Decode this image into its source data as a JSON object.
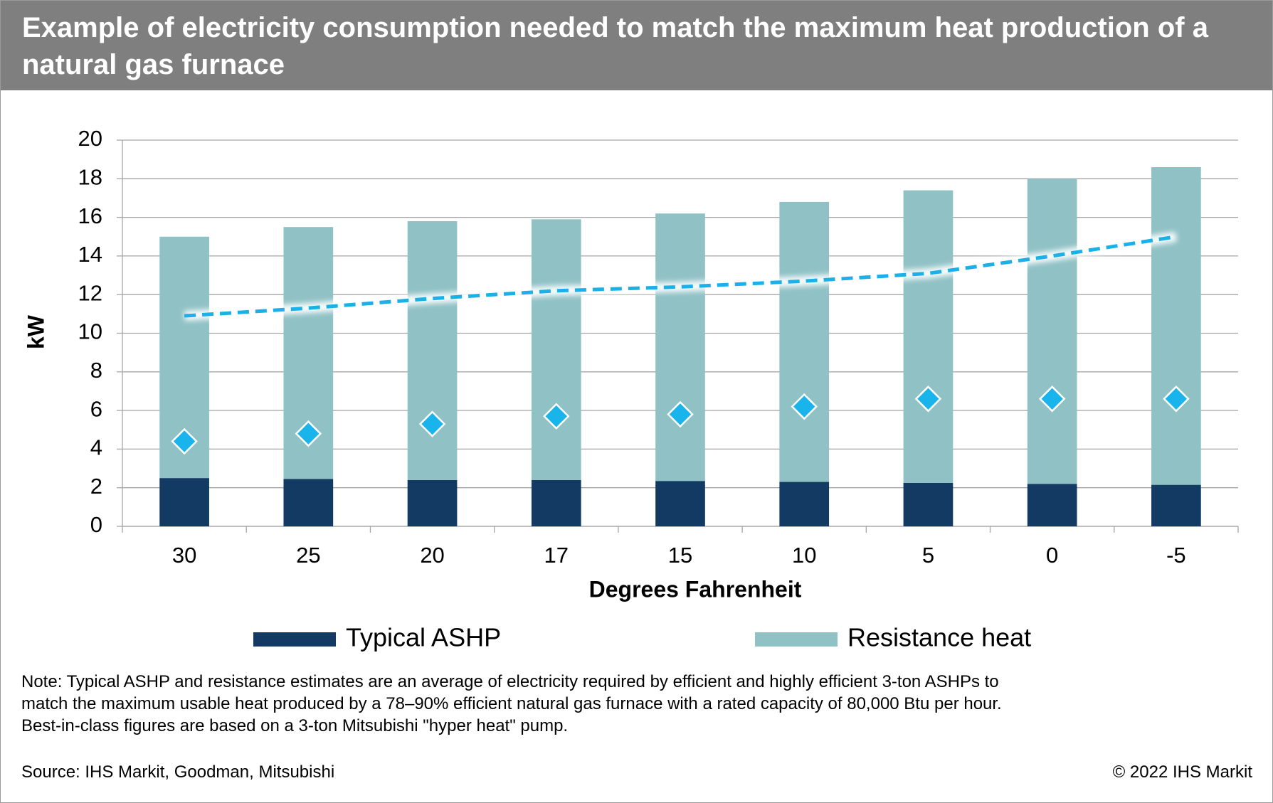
{
  "chart_data": {
    "type": "bar",
    "stacked": true,
    "title": "Example of electricity consumption needed to match the maximum heat production of a natural gas furnace",
    "x_label": "Degrees Fahrenheit",
    "y_label": "kW",
    "categories": [
      "30",
      "25",
      "20",
      "17",
      "15",
      "10",
      "5",
      "0",
      "-5"
    ],
    "series": [
      {
        "name": "Typical ASHP",
        "color": "#123a63",
        "values": [
          2.5,
          2.45,
          2.4,
          2.4,
          2.35,
          2.3,
          2.25,
          2.2,
          2.15
        ]
      },
      {
        "name": "Resistance heat",
        "color": "#8fc1c5",
        "values": [
          12.5,
          13.05,
          13.4,
          13.5,
          13.85,
          14.5,
          15.15,
          15.8,
          16.45
        ]
      }
    ],
    "overlays": [
      {
        "type": "line",
        "style": "dashed",
        "color": "#1bb0e8",
        "values": [
          10.9,
          11.3,
          11.8,
          12.2,
          12.4,
          12.7,
          13.1,
          14.0,
          15.0
        ]
      },
      {
        "type": "scatter",
        "marker": "diamond",
        "color": "#19b4ec",
        "values": [
          4.4,
          4.8,
          5.3,
          5.7,
          5.8,
          6.2,
          6.6,
          6.6,
          6.6
        ]
      }
    ],
    "ylim": [
      0,
      20
    ],
    "yticks": [
      0,
      2,
      4,
      6,
      8,
      10,
      12,
      14,
      16,
      18,
      20
    ],
    "grid": true,
    "legend": "bottom",
    "note": "Note: Typical ASHP and resistance estimates are an average of electricity required by efficient and highly efficient 3-ton ASHPs to match the maximum usable heat produced by a 78–90% efficient natural gas furnace with a rated capacity of 80,000 Btu per hour. Best-in-class figures are based on a 3-ton Mitsubishi \"hyper heat\" pump.",
    "source": "Source: IHS Markit, Goodman, Mitsubishi",
    "copyright": "© 2022 IHS Markit"
  }
}
